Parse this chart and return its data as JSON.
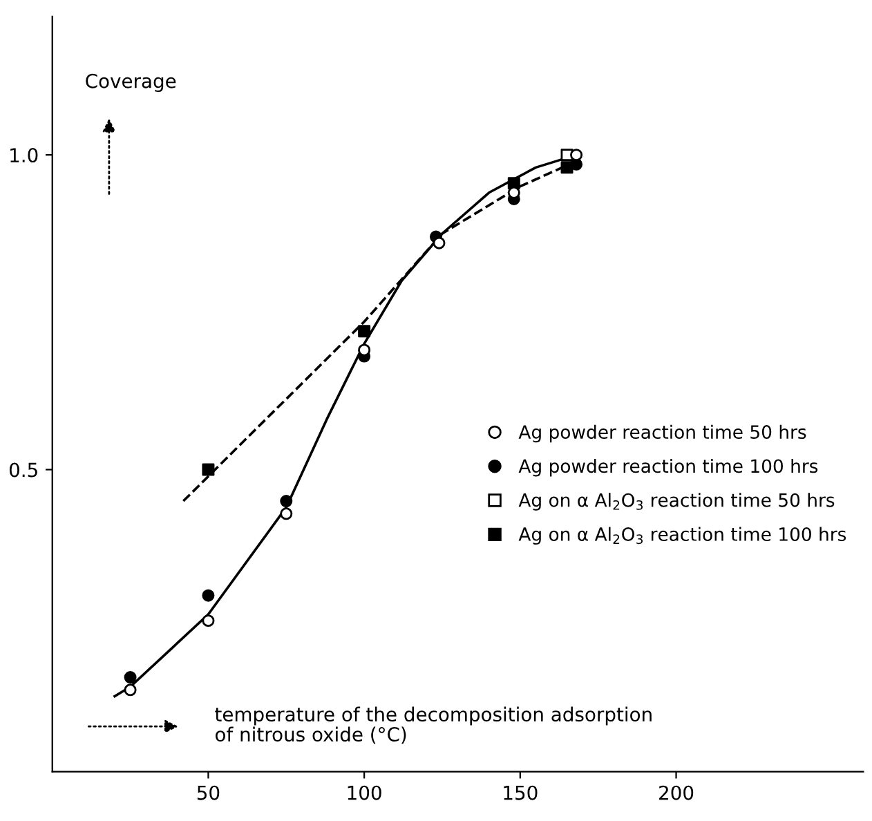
{
  "chart_data": {
    "type": "scatter",
    "xlabel": "temperature of the decomposition adsorption\nof nitrous oxide (°C)",
    "ylabel": "Coverage",
    "xlim": [
      0,
      260
    ],
    "ylim": [
      0.02,
      1.22
    ],
    "xticks": [
      50,
      100,
      150,
      200
    ],
    "yticks": [
      {
        "value": 0.5,
        "label": "0.5"
      },
      {
        "value": 1.0,
        "label": "1.0"
      }
    ],
    "grid": false,
    "legend": "right",
    "series": [
      {
        "name": "Ag powder reaction time 50 hrs",
        "marker": "circle",
        "color": "#ffffff",
        "x": [
          25,
          50,
          75,
          100,
          124,
          148,
          168
        ],
        "values": [
          0.15,
          0.26,
          0.43,
          0.69,
          0.86,
          0.94,
          1.0
        ]
      },
      {
        "name": "Ag powder reaction time 100 hrs",
        "marker": "circle",
        "color": "#000000",
        "x": [
          25,
          50,
          75,
          100,
          123,
          148,
          168
        ],
        "values": [
          0.17,
          0.3,
          0.45,
          0.68,
          0.87,
          0.93,
          0.985
        ]
      },
      {
        "name": "Ag on α Al$_{2}$O$_{3}$ reaction time 50 hrs",
        "marker": "square",
        "color": "#ffffff",
        "x": [
          165
        ],
        "values": [
          1.0
        ]
      },
      {
        "name": "Ag on α Al$_{2}$O$_{3}$ reaction time 100 hrs",
        "marker": "square",
        "color": "#000000",
        "x": [
          50,
          100,
          148,
          165
        ],
        "values": [
          0.5,
          0.72,
          0.955,
          0.98
        ]
      },
      {
        "type": "line",
        "line_style": "solid",
        "color": "#000000",
        "x": [
          20,
          25,
          50,
          75,
          88,
          100,
          112,
          125,
          140,
          155,
          168
        ],
        "values": [
          0.14,
          0.155,
          0.27,
          0.44,
          0.58,
          0.7,
          0.8,
          0.875,
          0.94,
          0.98,
          1.0
        ]
      },
      {
        "type": "line",
        "line_style": "dashed",
        "color": "#000000",
        "x": [
          42,
          100,
          125,
          150,
          168
        ],
        "values": [
          0.45,
          0.735,
          0.875,
          0.95,
          0.99
        ]
      }
    ]
  }
}
